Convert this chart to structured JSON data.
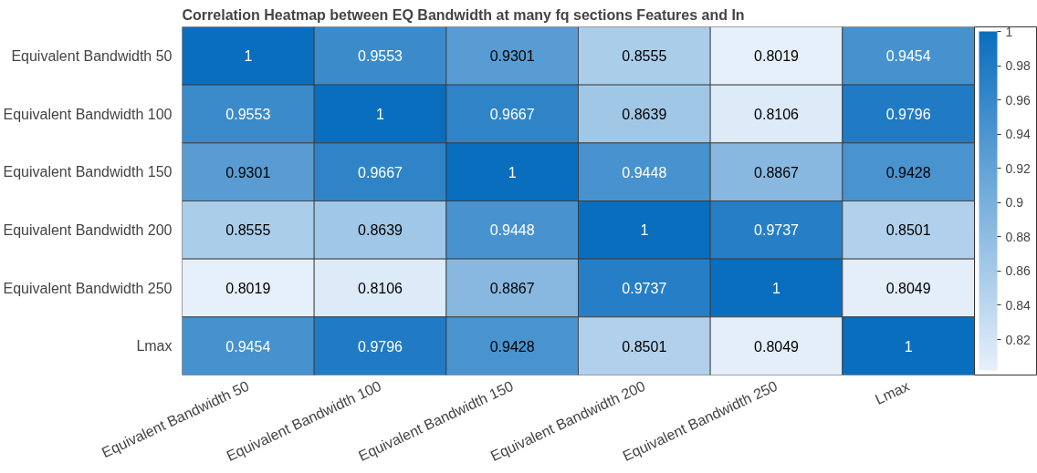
{
  "chart_data": {
    "type": "heatmap",
    "title": "Correlation Heatmap between EQ Bandwidth at many fq sections Features and In",
    "categories": [
      "Equivalent Bandwidth 50",
      "Equivalent Bandwidth 100",
      "Equivalent Bandwidth 150",
      "Equivalent Bandwidth 200",
      "Equivalent Bandwidth 250",
      "Lmax"
    ],
    "y_categories": [
      "Equivalent Bandwidth 50",
      "Equivalent Bandwidth 100",
      "Equivalent Bandwidth 150",
      "Equivalent Bandwidth 200",
      "Equivalent Bandwidth 250",
      "Lmax"
    ],
    "cells": [
      [
        1,
        0.9553,
        0.9301,
        0.8555,
        0.8019,
        0.9454
      ],
      [
        0.9553,
        1,
        0.9667,
        0.8639,
        0.8106,
        0.9796
      ],
      [
        0.9301,
        0.9667,
        1,
        0.9448,
        0.8867,
        0.9428
      ],
      [
        0.8555,
        0.8639,
        0.9448,
        1,
        0.9737,
        0.8501
      ],
      [
        0.8019,
        0.8106,
        0.8867,
        0.9737,
        1,
        0.8049
      ],
      [
        0.9454,
        0.9796,
        0.9428,
        0.8501,
        0.8049,
        1
      ]
    ],
    "clim": [
      0.8019,
      1
    ],
    "cticks": [
      0.82,
      0.84,
      0.86,
      0.88,
      0.9,
      0.92,
      0.94,
      0.96,
      0.98,
      1
    ],
    "data_labels": true
  }
}
